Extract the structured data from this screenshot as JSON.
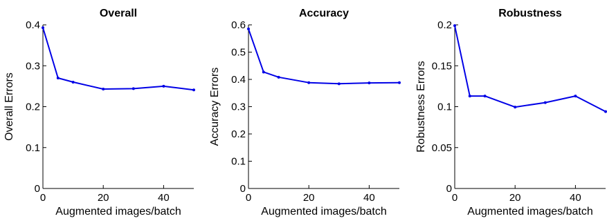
{
  "chart_data": [
    {
      "type": "line",
      "title": "Overall",
      "xlabel": "Augmented images/batch",
      "ylabel": "Overall Errors",
      "xlim": [
        0,
        50
      ],
      "ylim": [
        0,
        0.4
      ],
      "xticks": [
        "0",
        "20",
        "40"
      ],
      "xtick_values": [
        0,
        20,
        40
      ],
      "yticks": [
        "0",
        "0.1",
        "0.2",
        "0.3",
        "0.4"
      ],
      "ytick_values": [
        0,
        0.1,
        0.2,
        0.3,
        0.4
      ],
      "series": [
        {
          "x": [
            0,
            5,
            10,
            20,
            30,
            40,
            50
          ],
          "values": [
            0.393,
            0.27,
            0.26,
            0.243,
            0.244,
            0.25,
            0.241
          ]
        }
      ],
      "color": "#0000e6",
      "grid": false
    },
    {
      "type": "line",
      "title": "Accuracy",
      "xlabel": "Augmented images/batch",
      "ylabel": "Accuracy Errors",
      "xlim": [
        0,
        50
      ],
      "ylim": [
        0,
        0.6
      ],
      "xticks": [
        "0",
        "20",
        "40"
      ],
      "xtick_values": [
        0,
        20,
        40
      ],
      "yticks": [
        "0",
        "0.1",
        "0.2",
        "0.3",
        "0.4",
        "0.5",
        "0.6"
      ],
      "ytick_values": [
        0,
        0.1,
        0.2,
        0.3,
        0.4,
        0.5,
        0.6
      ],
      "series": [
        {
          "x": [
            0,
            5,
            10,
            20,
            30,
            40,
            50
          ],
          "values": [
            0.585,
            0.427,
            0.408,
            0.388,
            0.384,
            0.387,
            0.388
          ]
        }
      ],
      "color": "#0000e6",
      "grid": false
    },
    {
      "type": "line",
      "title": "Robustness",
      "xlabel": "Augmented images/batch",
      "ylabel": "Robustness Errors",
      "xlim": [
        0,
        50
      ],
      "ylim": [
        0,
        0.2
      ],
      "xticks": [
        "0",
        "20",
        "40"
      ],
      "xtick_values": [
        0,
        20,
        40
      ],
      "yticks": [
        "0",
        "0.05",
        "0.1",
        "0.15",
        "0.2"
      ],
      "ytick_values": [
        0,
        0.05,
        0.1,
        0.15,
        0.2
      ],
      "series": [
        {
          "x": [
            0,
            5,
            10,
            20,
            30,
            40,
            50
          ],
          "values": [
            0.199,
            0.113,
            0.113,
            0.0995,
            0.105,
            0.113,
            0.094
          ]
        }
      ],
      "color": "#0000e6",
      "grid": false
    }
  ]
}
